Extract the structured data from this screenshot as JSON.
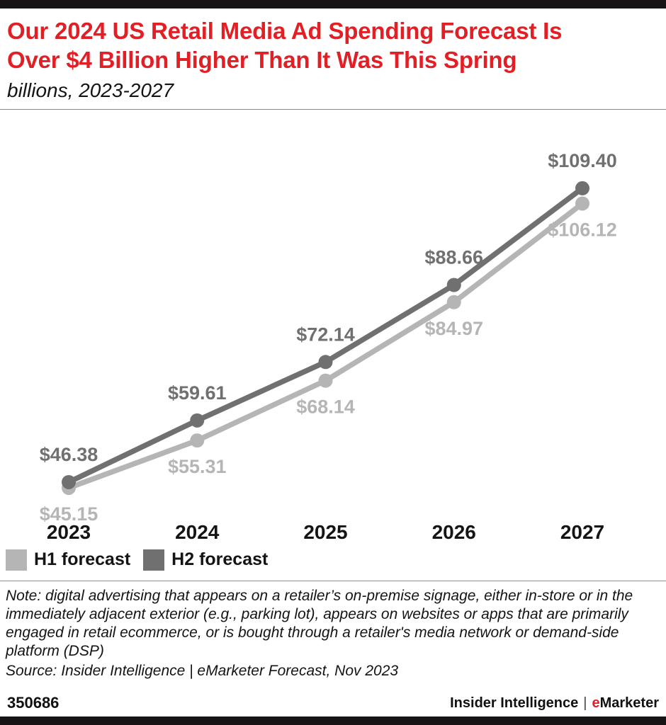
{
  "theme": {
    "accent_red": "#e31f26",
    "bar_black": "#181314"
  },
  "header": {
    "title_line1": "Our 2024 US Retail Media Ad Spending Forecast Is",
    "title_line2": "Over $4 Billion Higher Than It Was This Spring",
    "subtitle": "billions, 2023-2027"
  },
  "chart_data": {
    "type": "line",
    "title": "US retail media ad spending forecast, billions, 2023-2027",
    "categories": [
      "2023",
      "2024",
      "2025",
      "2026",
      "2027"
    ],
    "series": [
      {
        "name": "H1 forecast",
        "color": "#b5b5b5",
        "label_position": "below",
        "values": [
          45.15,
          55.31,
          68.14,
          84.97,
          106.12
        ]
      },
      {
        "name": "H2 forecast",
        "color": "#707070",
        "label_position": "above",
        "values": [
          46.38,
          59.61,
          72.14,
          88.66,
          109.4
        ]
      }
    ],
    "value_prefix": "$",
    "ylim": [
      40,
      115
    ],
    "grid": false,
    "legend_position": "bottom-left"
  },
  "footnote": {
    "note": "Note: digital advertising that appears on a retailer’s on-premise signage, either in-store or in the immediately adjacent exterior (e.g., parking lot), appears on websites or apps that are primarily engaged in retail ecommerce, or is bought through a retailer's media network or demand-side platform (DSP)",
    "source": "Source: Insider Intelligence | eMarketer Forecast, Nov 2023"
  },
  "footer": {
    "chart_id": "350686",
    "brand_name": "Insider Intelligence",
    "brand_divider": "|",
    "brand_e": "e",
    "brand_rest": "Marketer"
  }
}
